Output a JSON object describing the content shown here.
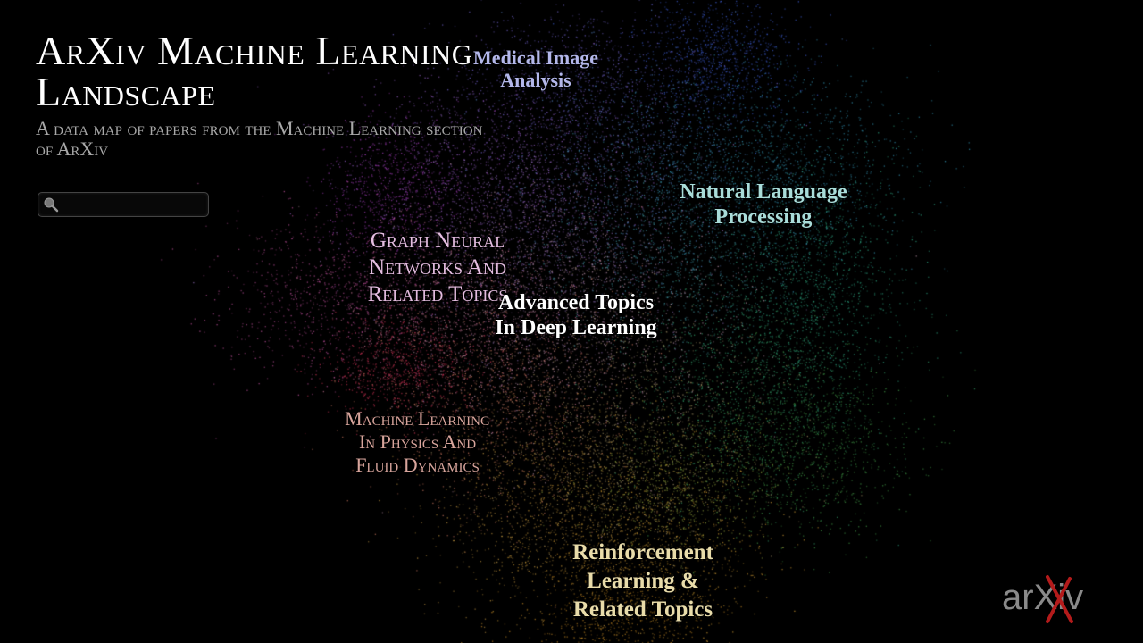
{
  "header": {
    "title": "ArXiv Machine Learning Landscape",
    "subtitle": "A data map of papers from the Machine Learning section of ArXiv"
  },
  "search": {
    "placeholder": "",
    "icon": "search-icon"
  },
  "clusters": [
    {
      "id": "medical-image-analysis",
      "label": "Medical Image\nAnalysis",
      "color": "#b3b7ea",
      "style": "bold"
    },
    {
      "id": "natural-language-processing",
      "label": "Natural Language\nProcessing",
      "color": "#a9dcd9",
      "style": "bold"
    },
    {
      "id": "graph-neural-networks",
      "label": "Graph Neural\nNetworks And\nRelated Topics",
      "color": "#e4bde0",
      "style": "smallcaps"
    },
    {
      "id": "advanced-topics-deep-learning",
      "label": "Advanced Topics\nIn Deep Learning",
      "color": "#ffffff",
      "style": "bold"
    },
    {
      "id": "ml-physics-fluid-dynamics",
      "label": "Machine Learning\nIn Physics And\nFluid Dynamics",
      "color": "#d8a59c",
      "style": "smallcaps"
    },
    {
      "id": "reinforcement-learning",
      "label": "Reinforcement\nLearning &\nRelated Topics",
      "color": "#e9dcaa",
      "style": "bold"
    }
  ],
  "logo": {
    "text": "arXiv",
    "accent_color": "#b31b1b"
  }
}
